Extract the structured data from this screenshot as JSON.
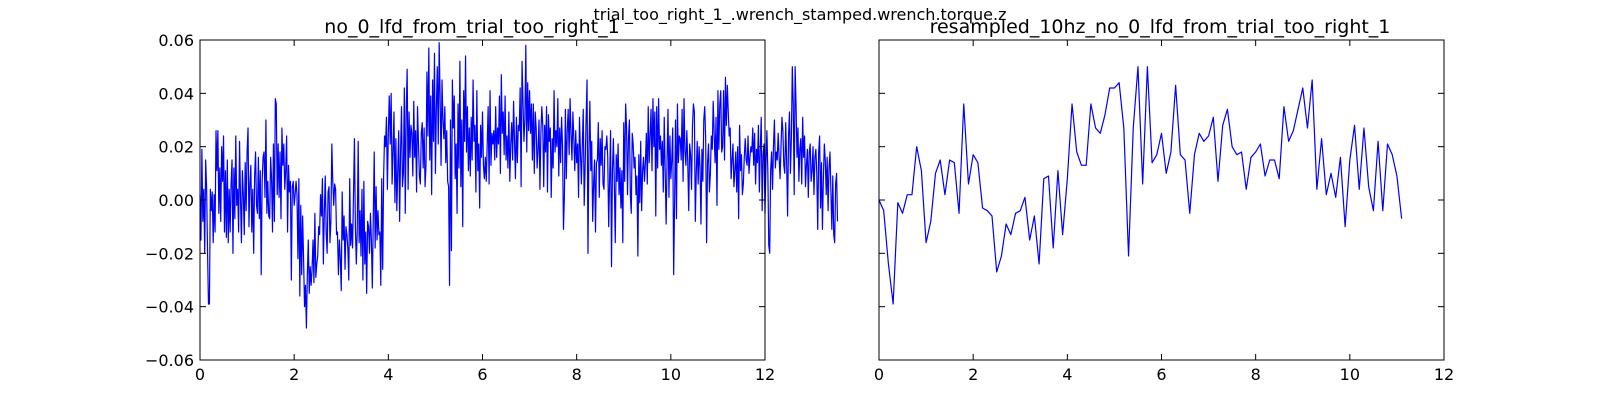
{
  "suptitle": "trial_too_right_1_.wrench_stamped.wrench.torque.z",
  "chart_data": [
    {
      "type": "line",
      "title": "no_0_lfd_from_trial_too_right_1",
      "xlabel": "",
      "ylabel": "",
      "xlim": [
        0,
        12
      ],
      "ylim": [
        -0.06,
        0.06
      ],
      "xticks": [
        "0",
        "2",
        "4",
        "6",
        "8",
        "10",
        "12"
      ],
      "yticks": [
        "−0.06",
        "−0.04",
        "−0.02",
        "0.00",
        "0.02",
        "0.04",
        "0.06"
      ],
      "grid": false,
      "legend": "none",
      "color": "#0000ff",
      "series": [
        {
          "x_start": 0.0,
          "x_step": 0.02,
          "values": [
            0.002,
            -0.015,
            0.019,
            -0.008,
            0.004,
            -0.02,
            0.015,
            0.005,
            -0.019,
            -0.039,
            -0.039,
            0.004,
            -0.004,
            0.003,
            -0.016,
            0.002,
            -0.012,
            0.026,
            0.011,
            0.026,
            -0.005,
            0.012,
            -0.008,
            0.02,
            0.007,
            0.024,
            -0.012,
            0.011,
            -0.014,
            0.015,
            -0.016,
            0.004,
            -0.012,
            0.006,
            0.015,
            -0.02,
            0.012,
            -0.007,
            0.024,
            -0.002,
            0.004,
            -0.012,
            0.022,
            0.001,
            -0.016,
            0.011,
            0.002,
            -0.013,
            0.014,
            -0.004,
            0.018,
            0.027,
            -0.01,
            0.006,
            0.013,
            -0.012,
            0.004,
            -0.02,
            0.009,
            0.018,
            -0.002,
            -0.005,
            0.016,
            -0.007,
            0.011,
            -0.028,
            0.007,
            0.016,
            0.018,
            0.001,
            0.03,
            -0.005,
            0.007,
            -0.006,
            -0.007,
            0.016,
            0.008,
            -0.012,
            0.021,
            -0.008,
            0.038,
            0.036,
            0.002,
            0.021,
            0.001,
            0.018,
            -0.007,
            0.027,
            0.013,
            0.021,
            0.004,
            0.011,
            0.024,
            -0.012,
            0.013,
            0.003,
            0.007,
            -0.03,
            0.005,
            0.007,
            -0.002,
            0.002,
            0.007,
            0.002,
            -0.022,
            0.008,
            -0.036,
            -0.002,
            -0.028,
            -0.006,
            -0.022,
            -0.04,
            -0.032,
            -0.048,
            -0.028,
            -0.015,
            -0.035,
            -0.025,
            -0.032,
            -0.026,
            -0.015,
            -0.031,
            -0.005,
            -0.029,
            -0.024,
            -0.021,
            -0.01,
            -0.013,
            0.002,
            -0.006,
            0.008,
            -0.024,
            -0.005,
            0.009,
            -0.012,
            -0.02,
            0.003,
            0.005,
            -0.016,
            -0.008,
            0.021,
            0.007,
            -0.002,
            0.006,
            0.004,
            -0.013,
            -0.012,
            -0.028,
            -0.015,
            -0.022,
            -0.034,
            0.003,
            -0.015,
            -0.006,
            -0.026,
            -0.01,
            -0.013,
            -0.018,
            -0.03,
            0.008,
            -0.017,
            -0.009,
            -0.018,
            0.002,
            0.023,
            -0.01,
            -0.024,
            -0.011,
            0.022,
            -0.016,
            -0.004,
            -0.021,
            0.004,
            -0.03,
            0.007,
            -0.024,
            -0.012,
            -0.035,
            -0.008,
            -0.01,
            -0.02,
            -0.005,
            -0.015,
            -0.033,
            -0.007,
            0.018,
            -0.018,
            0.005,
            -0.015,
            -0.004,
            -0.013,
            -0.012,
            -0.032,
            0.008,
            -0.026,
            0.009,
            0.024,
            0.02,
            0.031,
            0.004,
            0.025,
            0.039,
            0.021,
            0.04,
            0.006,
            0.018,
            0.033,
            -0.001,
            0.023,
            -0.004,
            0.011,
            0.026,
            -0.008,
            0.018,
            0.035,
            0.005,
            0.01,
            0.042,
            -0.005,
            0.034,
            0.049,
            0.004,
            0.033,
            0.016,
            0.028,
            0.025,
            0.009,
            0.037,
            0.016,
            0.026,
            0.003,
            0.035,
            0.021,
            0.009,
            0.006,
            0.025,
            0.029,
            0.012,
            0.027,
            0.005,
            0.013,
            0.048,
            0.024,
            0.057,
            0.015,
            0.039,
            0.002,
            0.045,
            0.022,
            0.055,
            0.01,
            0.034,
            0.05,
            0.021,
            0.059,
            0.038,
            0.013,
            0.045,
            0.03,
            0.023,
            0.035,
            0.014,
            0.026,
            0.007,
            0.005,
            -0.032,
            0.03,
            -0.019,
            0.045,
            0.027,
            0.039,
            0.008,
            0.021,
            -0.005,
            0.036,
            0.012,
            0.052,
            0.005,
            0.03,
            -0.01,
            0.041,
            0.022,
            0.054,
            0.018,
            0.035,
            0.011,
            0.027,
            0.009,
            0.031,
            0.015,
            0.045,
            0.022,
            0.028,
            0.003,
            0.041,
            0.011,
            0.021,
            -0.003,
            0.028,
            0.016,
            0.033,
            0.013,
            0.008,
            0.016,
            0.007,
            0.021,
            0.035,
            0.006,
            0.041,
            0.013,
            0.025,
            0.021,
            0.026,
            0.015,
            0.035,
            0.016,
            0.027,
            0.021,
            0.039,
            0.01,
            0.047,
            0.025,
            0.033,
            0.017,
            0.039,
            0.015,
            0.024,
            0.012,
            0.033,
            0.007,
            0.021,
            0.029,
            0.015,
            0.037,
            0.022,
            0.008,
            0.031,
            0.014,
            0.028,
            0.026,
            0.042,
            0.005,
            0.052,
            0.037,
            0.022,
            0.03,
            0.058,
            0.018,
            0.044,
            0.026,
            0.041,
            0.025,
            0.036,
            0.015,
            0.036,
            0.01,
            0.033,
            0.027,
            0.012,
            0.019,
            0.03,
            0.004,
            0.025,
            0.035,
            0.028,
            0.005,
            0.028,
            0.018,
            0.035,
            0.003,
            0.032,
            0.022,
            0.027,
            0.001,
            0.023,
            0.012,
            0.041,
            0.018,
            0.026,
            0.02,
            0.038,
            0.009,
            0.027,
            0.014,
            0.031,
            0.02,
            -0.011,
            0.002,
            0.034,
            0.008,
            0.026,
            0.034,
            0.017,
            0.038,
            0.025,
            0.015,
            0.033,
            0.023,
            0.011,
            0.026,
            0.014,
            0.021,
            0.001,
            0.031,
            0.018,
            0.006,
            0.021,
            0.034,
            -0.002,
            0.013,
            0.03,
            0.045,
            -0.02,
            0.019,
            0.037,
            0.011,
            0.022,
            -0.008,
            0.006,
            0.015,
            -0.012,
            0.014,
            0.015,
            0.029,
            0.001,
            0.023,
            0.013,
            0.026,
            0.006,
            0.004,
            0.02,
            0.019,
            0.024,
            0.016,
            -0.01,
            0.008,
            0.026,
            -0.025,
            0.011,
            0.023,
            0.006,
            -0.016,
            0.017,
            0.007,
            0.021,
            0.002,
            0.012,
            -0.003,
            0.011,
            -0.016,
            0.029,
            0.007,
            0.036,
            0.027,
            0.002,
            0.023,
            0.03,
            0.002,
            -0.005,
            0.025,
            0.021,
            0.012,
            0.016,
            0.002,
            0.009,
            -0.021,
            0.017,
            -0.001,
            0.022,
            -0.004,
            0.011,
            0.016,
            0.007,
            0.014,
            0.025,
            0.006,
            0.035,
            0.014,
            0.024,
            0.034,
            0.011,
            0.038,
            0.02,
            0.033,
            -0.006,
            0.035,
            0.012,
            0.038,
            0.019,
            0.024,
            0.013,
            0.022,
            0.003,
            0.031,
            0.011,
            -0.009,
            0.015,
            0.034,
            0.001,
            0.024,
            0.008,
            0.015,
            0.027,
            -0.028,
            -0.001,
            0.03,
            -0.007,
            0.036,
            0.014,
            0.024,
            0.023,
            0.015,
            0.034,
            0.007,
            0.038,
            0.018,
            0.013,
            0.026,
            0.014,
            -0.004,
            0.021,
            0.017,
            0.004,
            0.028,
            0.036,
            0.033,
            -0.008,
            0.01,
            0.022,
            0.006,
            0.02,
            0.012,
            -0.009,
            0.019,
            0.007,
            0.03,
            0.035,
            0.023,
            -0.016,
            0.014,
            0.021,
            0.003,
            0.01,
            0.024,
            0.019,
            0.037,
            0.025,
            0.014,
            0.031,
            -0.002,
            0.041,
            0.019,
            0.036,
            0.041,
            0.018,
            0.02,
            0.041,
            0.015,
            0.046,
            0.028,
            0.043,
            0.033,
            0.024,
            0.027,
            0.008,
            0.015,
            0.021,
            0.005,
            0.011,
            0.018,
            0.003,
            0.02,
            -0.007,
            0.028,
            0.011,
            0.017,
            0.002,
            0.006,
            0.016,
            0.023,
            0.015,
            0.013,
            0.024,
            0.01,
            0.016,
            0.02,
            0.018,
            0.027,
            0.013,
            0.025,
            0.006,
            0.019,
            0.014,
            0.028,
            0.003,
            0.019,
            0.031,
            -0.004,
            0.017,
            0.021,
            -0.005,
            0.013,
            0.026,
            0.011,
            -0.017,
            -0.02,
            0.011,
            0.018,
            0.004,
            0.02,
            0.03,
            0.012,
            0.018,
            0.015,
            0.025,
            0.016,
            0.008,
            0.02,
            0.031,
            0.026,
            0.013,
            0.01,
            0.029,
            0.014,
            -0.006,
            0.024,
            0.033,
            0.01,
            0.023,
            0.05,
            0.036,
            0.002,
            0.05,
            0.035,
            0.016,
            0.027,
            0.007,
            0.019,
            0.023,
            0.006,
            0.031,
            0.016,
            0.024,
            0.005,
            0.013,
            0.019,
            0.001,
            0.018,
            0.021,
            0.007,
            0.011,
            0.02,
            0.002,
            0.016,
            0.019,
            0.01,
            -0.011,
            0.018,
            0.024,
            -0.003,
            0.014,
            -0.011,
            0.008,
            0.021,
            0.015,
            0.002,
            0.016,
            -0.004,
            0.012,
            0.018,
            0.003,
            -0.011,
            0.009,
            -0.013,
            -0.016,
            0.006,
            0.01,
            -0.008
          ]
        }
      ]
    },
    {
      "type": "line",
      "title": "resampled_10hz_no_0_lfd_from_trial_too_right_1",
      "xlabel": "",
      "ylabel": "",
      "xlim": [
        0,
        12
      ],
      "ylim": [
        -0.06,
        0.06
      ],
      "xticks": [
        "0",
        "2",
        "4",
        "6",
        "8",
        "10",
        "12"
      ],
      "yticks": [],
      "grid": false,
      "legend": "none",
      "color": "#0000ff",
      "series": [
        {
          "x_start": 0.0,
          "x_step": 0.1,
          "values": [
            0.0,
            -0.004,
            -0.024,
            -0.039,
            -0.001,
            -0.005,
            0.002,
            0.002,
            0.02,
            0.011,
            -0.016,
            -0.008,
            0.01,
            0.015,
            0.002,
            0.015,
            0.014,
            -0.005,
            0.036,
            0.006,
            0.017,
            0.014,
            -0.003,
            -0.004,
            -0.006,
            -0.027,
            -0.021,
            -0.009,
            -0.013,
            -0.005,
            -0.004,
            0.001,
            -0.015,
            -0.006,
            -0.024,
            0.008,
            0.009,
            -0.018,
            0.011,
            -0.013,
            0.008,
            0.036,
            0.018,
            0.013,
            0.013,
            0.036,
            0.027,
            0.025,
            0.032,
            0.042,
            0.042,
            0.044,
            0.027,
            -0.021,
            0.027,
            0.05,
            0.006,
            0.05,
            0.014,
            0.017,
            0.025,
            0.01,
            0.018,
            0.043,
            0.017,
            0.015,
            -0.005,
            0.017,
            0.025,
            0.022,
            0.024,
            0.031,
            0.007,
            0.028,
            0.034,
            0.02,
            0.017,
            0.018,
            0.004,
            0.016,
            0.018,
            0.021,
            0.009,
            0.015,
            0.015,
            0.008,
            0.035,
            0.022,
            0.026,
            0.034,
            0.042,
            0.027,
            0.045,
            0.004,
            0.023,
            0.002,
            0.01,
            0.001,
            0.016,
            -0.01,
            0.015,
            0.028,
            0.004,
            0.027,
            0.005,
            -0.004,
            0.022,
            -0.004,
            0.021,
            0.017,
            0.009,
            -0.007
          ]
        }
      ]
    }
  ]
}
